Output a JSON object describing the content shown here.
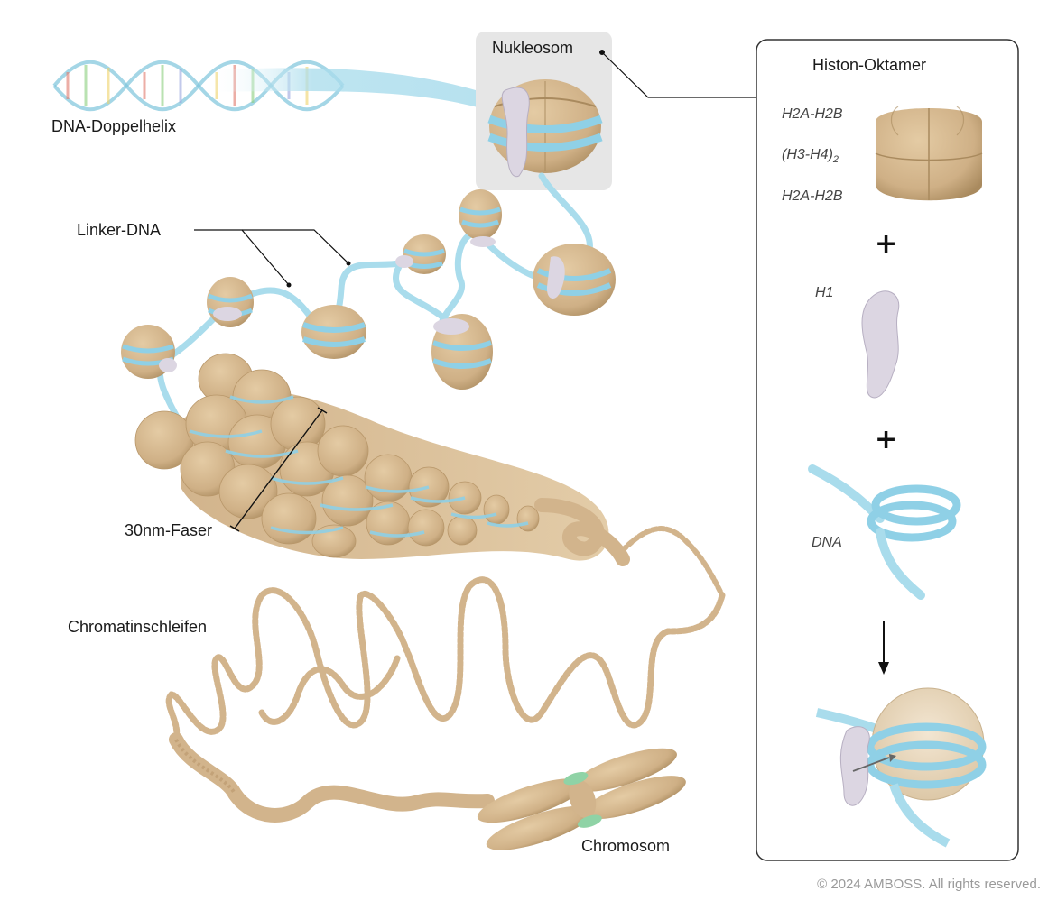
{
  "labels": {
    "dna_helix": "DNA-Doppelhelix",
    "nucleosome": "Nukleosom",
    "linker_dna": "Linker-DNA",
    "fiber_30nm": "30nm-Faser",
    "chromatin_loops": "Chromatinschleifen",
    "chromosome": "Chromosom"
  },
  "panel": {
    "title": "Histon-Oktamer",
    "h2a_h2b_top": "H2A-H2B",
    "h3_h4": "(H3-H4)",
    "h3_h4_sub": "2",
    "h2a_h2b_bottom": "H2A-H2B",
    "plus_1": "+",
    "h1": "H1",
    "plus_2": "+",
    "dna": "DNA"
  },
  "copyright": "© 2024 AMBOSS. All rights reserved.",
  "colors": {
    "histone": "#d2b48c",
    "histone_dark": "#b8976a",
    "dna": "#a9dcec",
    "dna_dark": "#6fbfd8",
    "h1": "#d6d1dd",
    "centromere": "#8fd3a6"
  }
}
